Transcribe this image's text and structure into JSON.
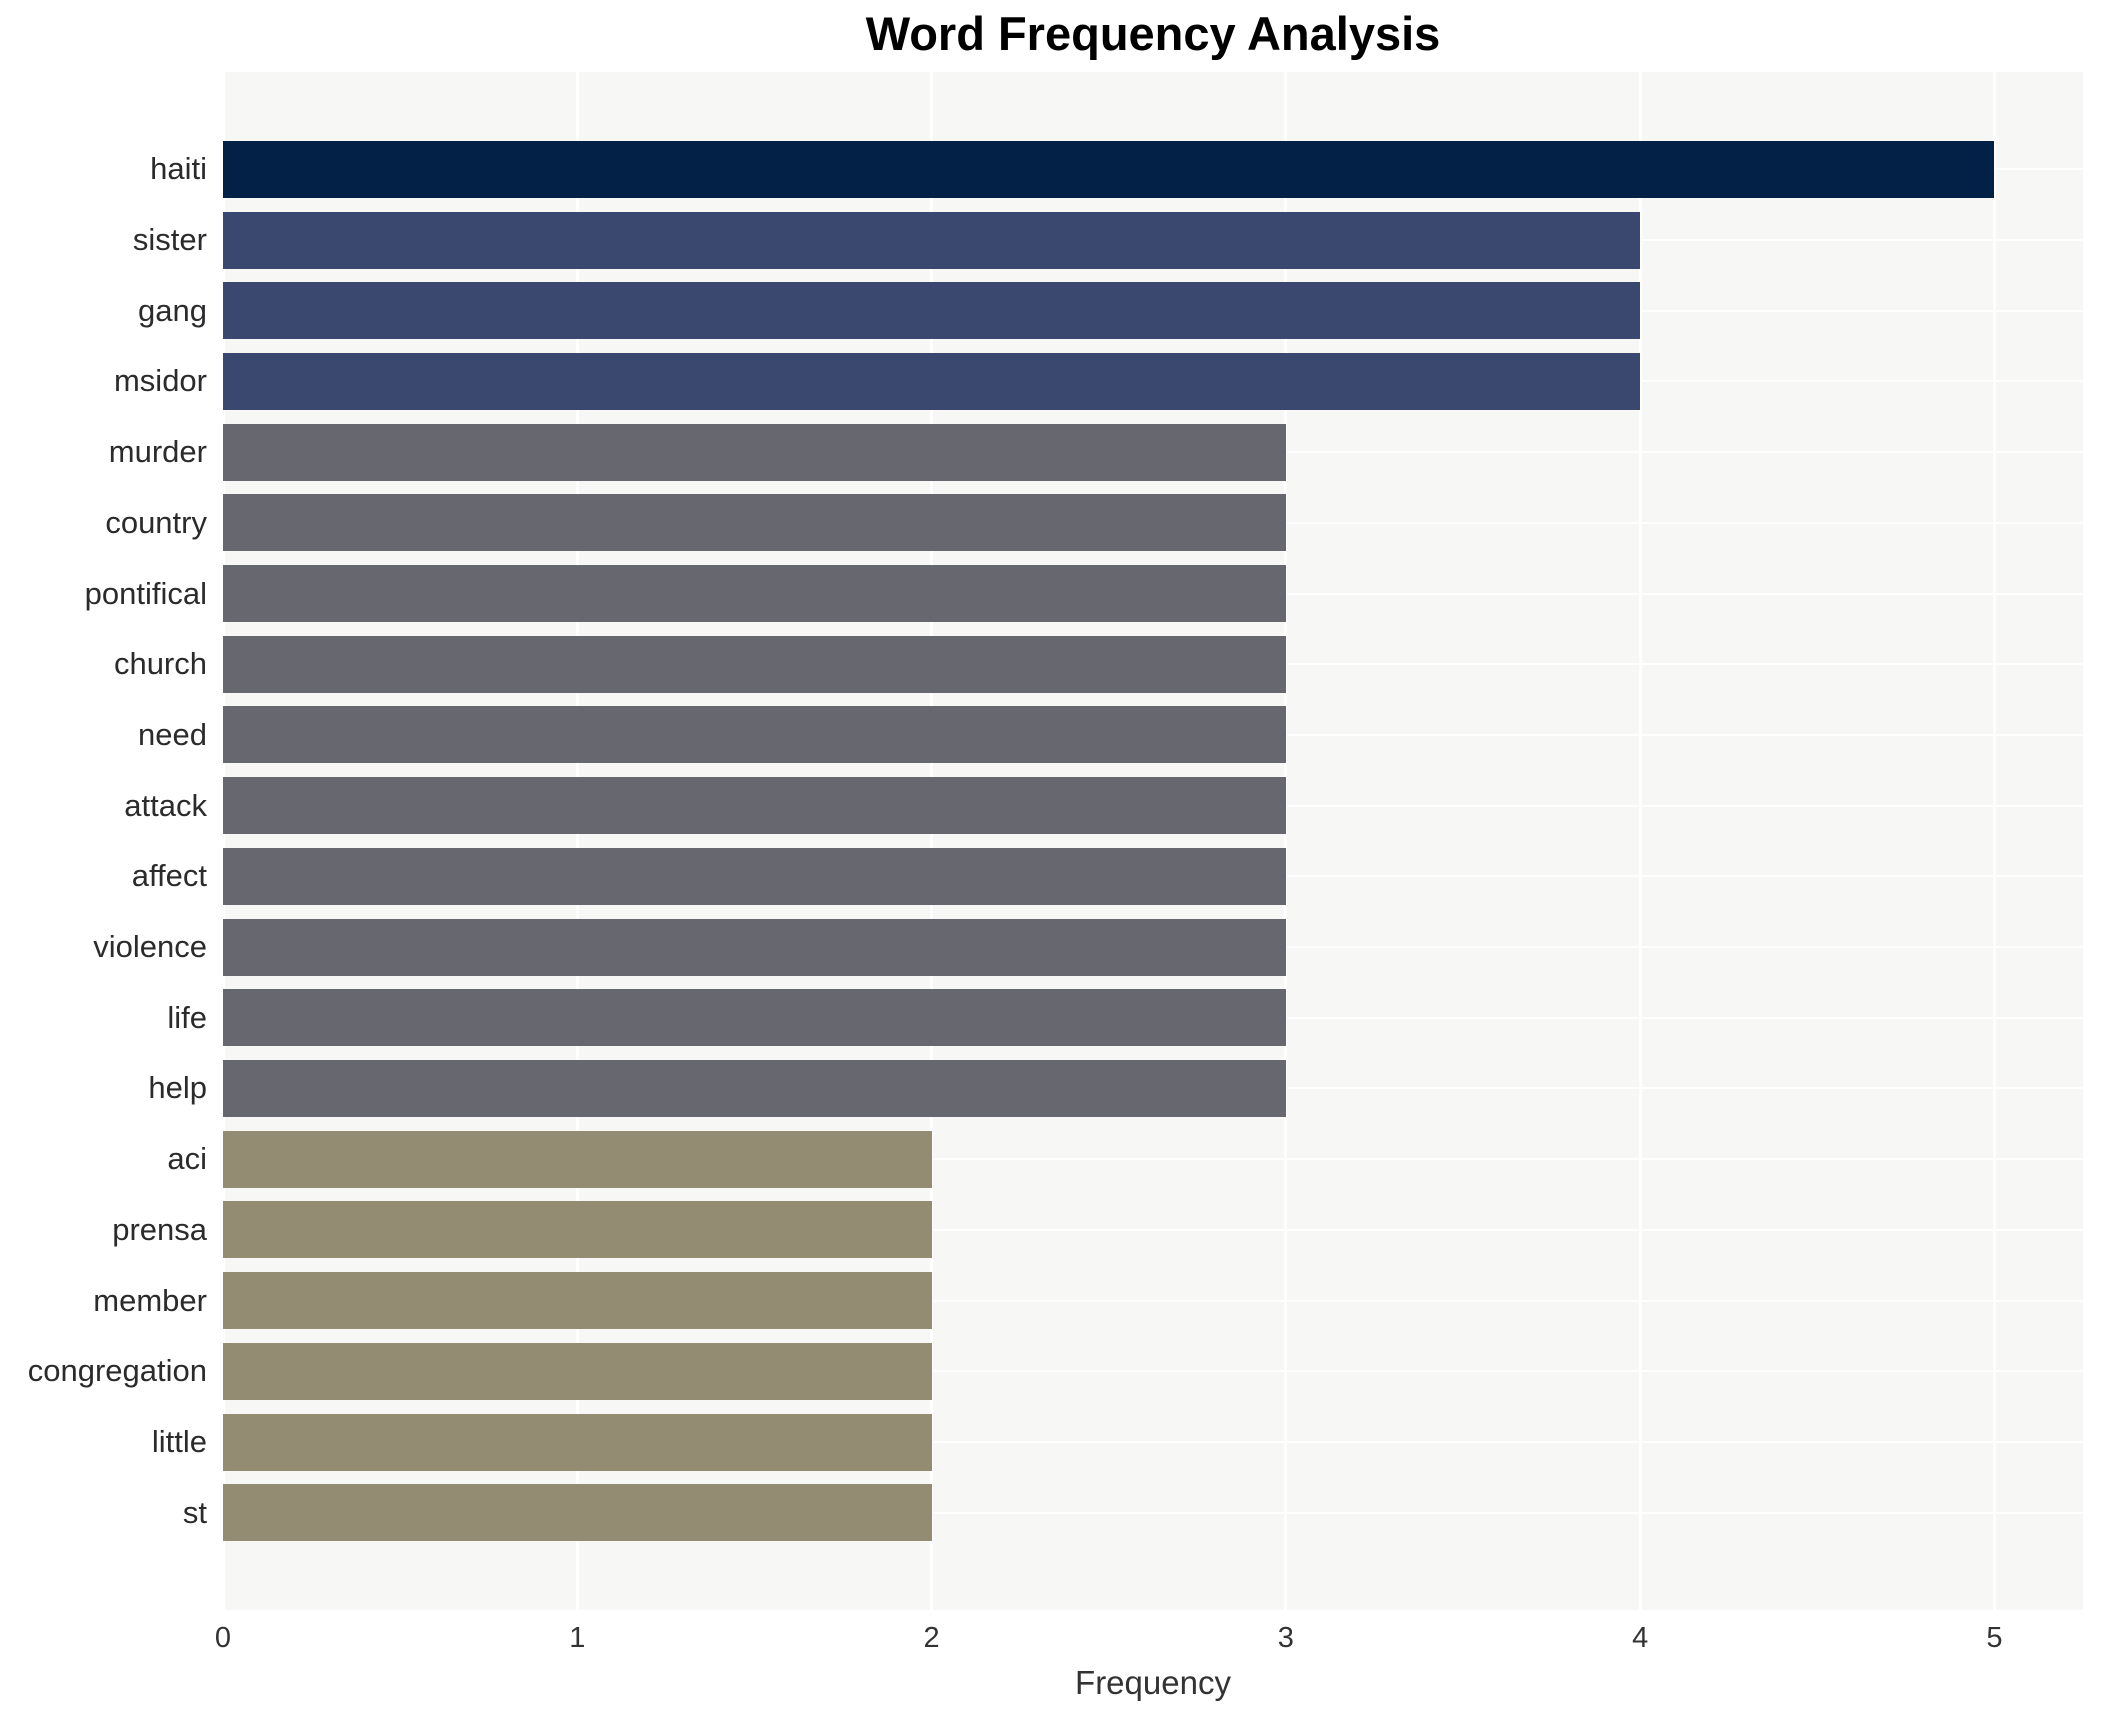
{
  "chart_data": {
    "type": "bar",
    "orientation": "horizontal",
    "title": "Word Frequency Analysis",
    "xlabel": "Frequency",
    "ylabel": "",
    "categories": [
      "haiti",
      "sister",
      "gang",
      "msidor",
      "murder",
      "country",
      "pontifical",
      "church",
      "need",
      "attack",
      "affect",
      "violence",
      "life",
      "help",
      "aci",
      "prensa",
      "member",
      "congregation",
      "little",
      "st"
    ],
    "values": [
      5,
      4,
      4,
      4,
      3,
      3,
      3,
      3,
      3,
      3,
      3,
      3,
      3,
      3,
      2,
      2,
      2,
      2,
      2,
      2
    ],
    "xlim": [
      0,
      5.25
    ],
    "xticks": [
      0,
      1,
      2,
      3,
      4,
      5
    ],
    "grid": true,
    "legend": false,
    "colors_by_value": {
      "5": "#032147",
      "4": "#3a476e",
      "3": "#67676f",
      "2": "#948c72"
    },
    "plot_background": "#f7f7f6",
    "grid_color": "#ffffff",
    "title_color": "#000000",
    "label_color": "#2b2b2b",
    "tick_color": "#333333"
  }
}
